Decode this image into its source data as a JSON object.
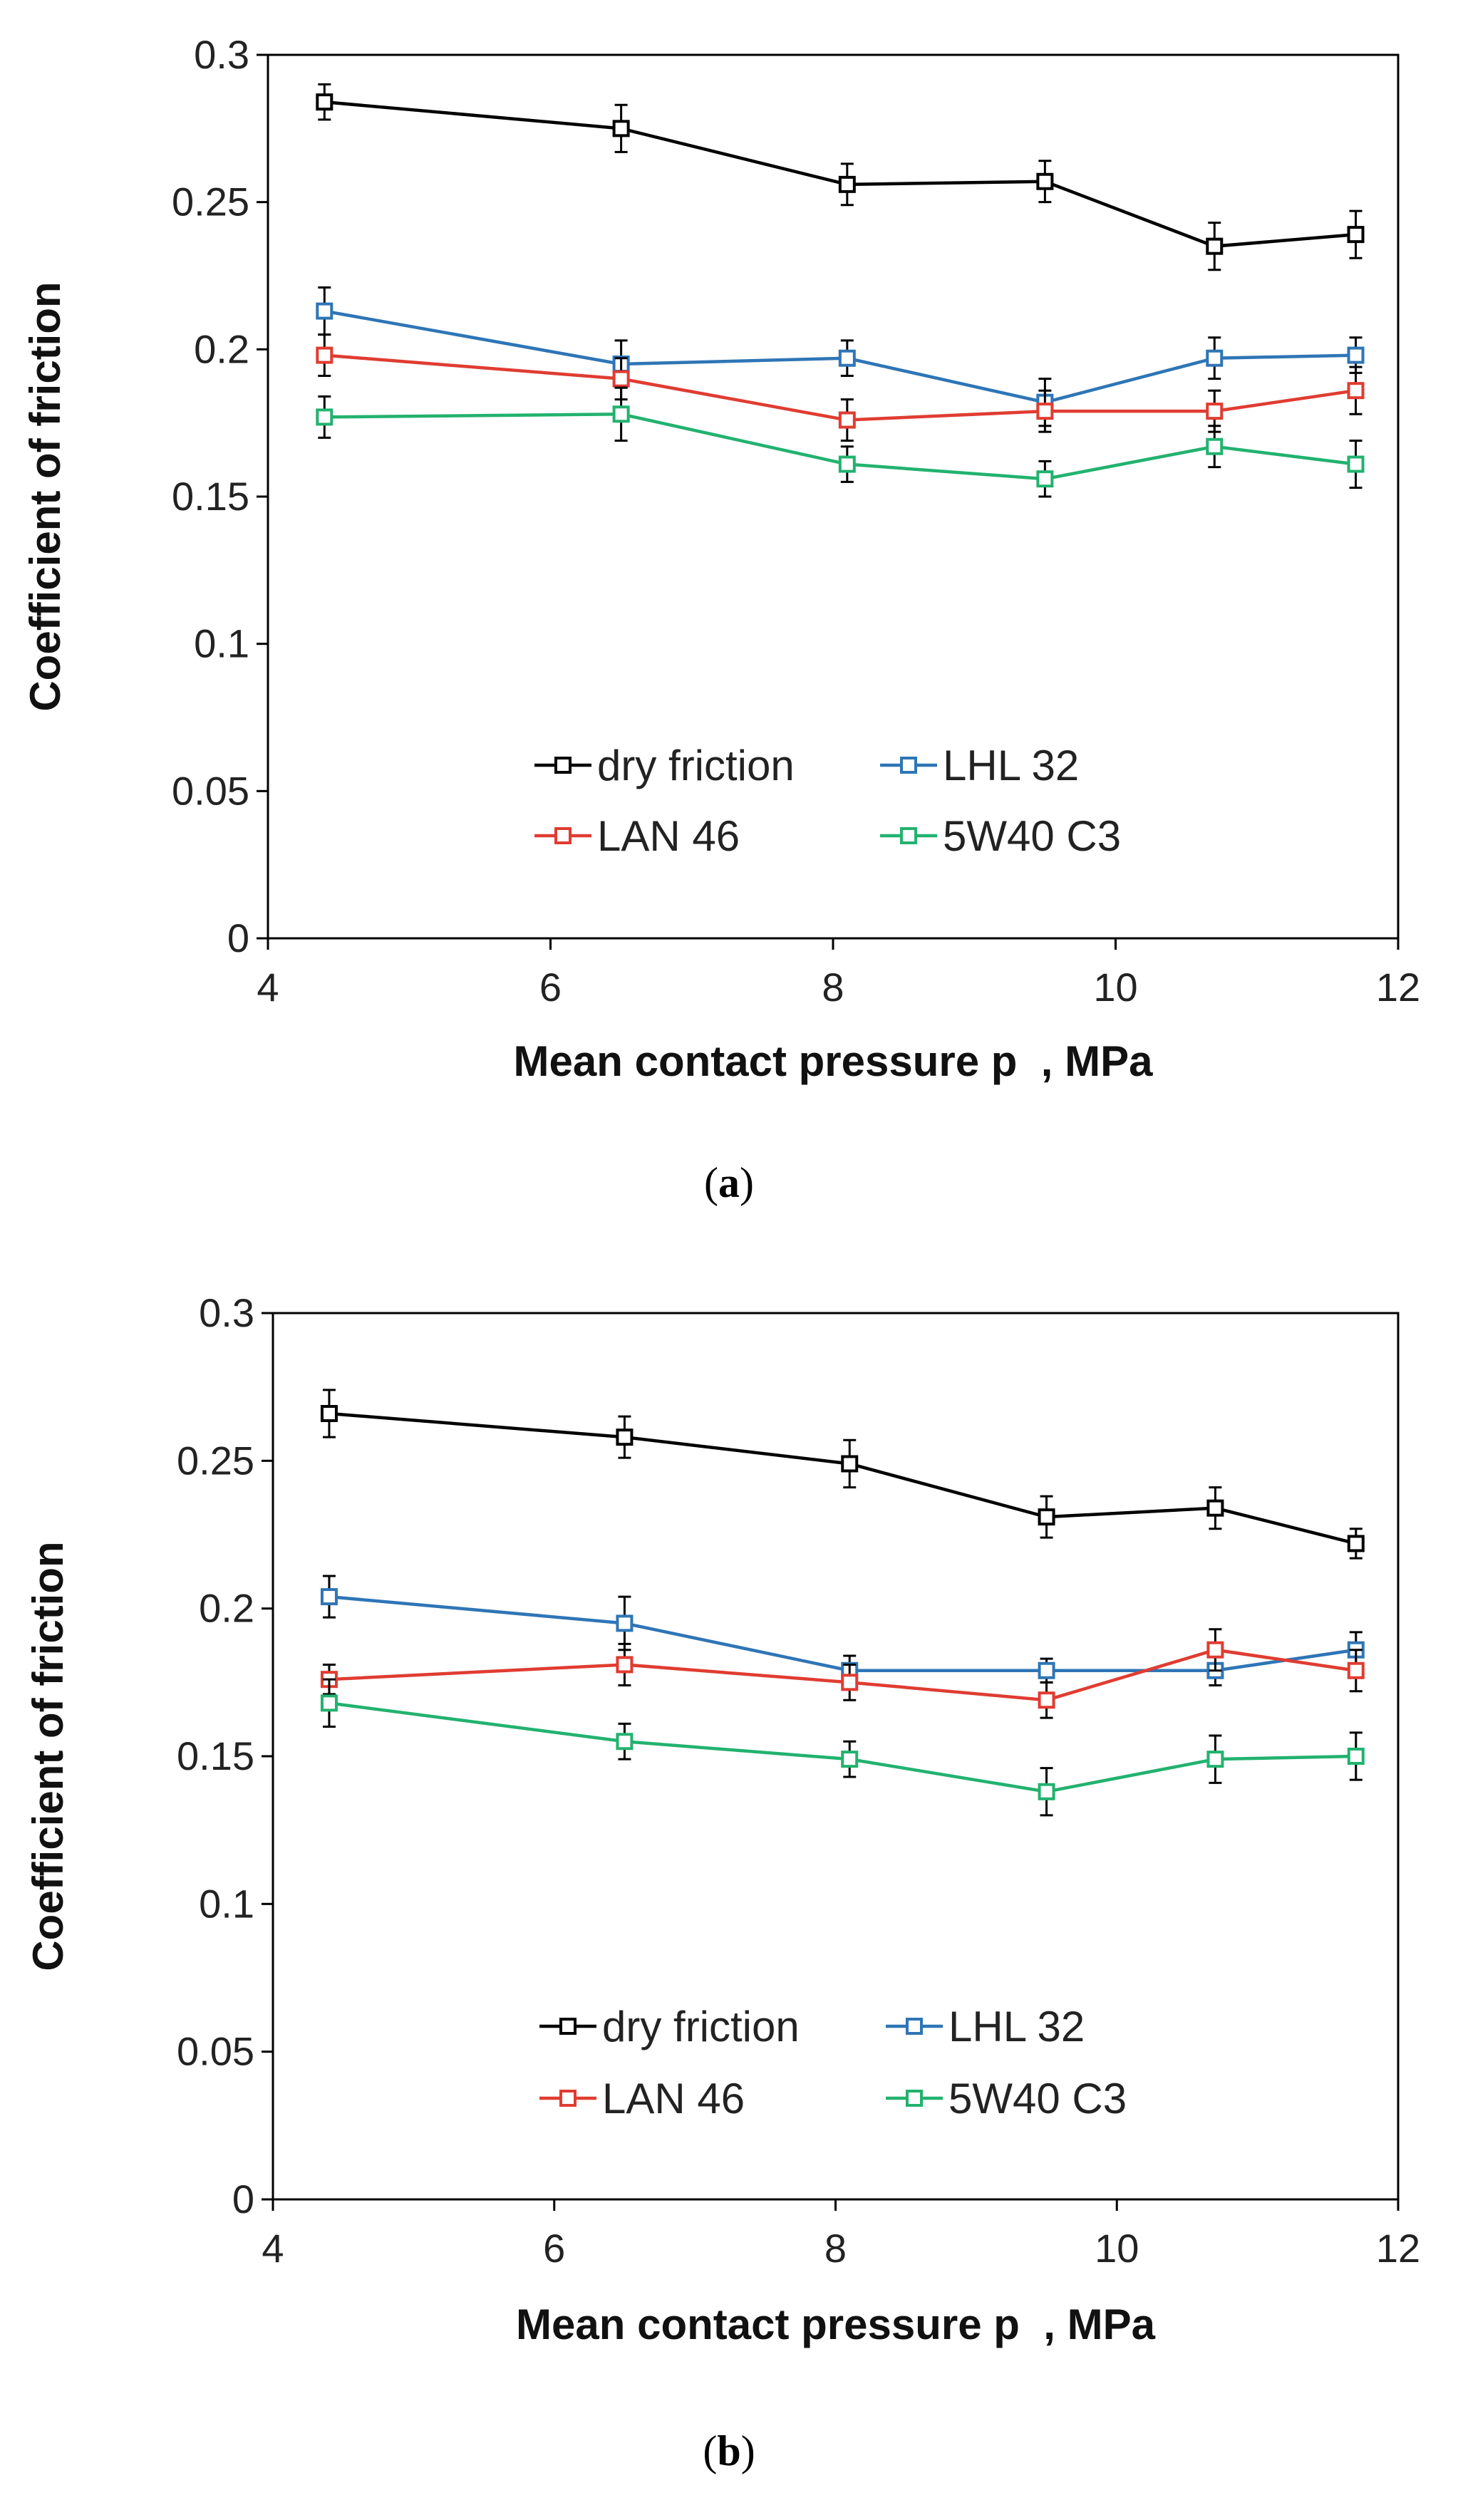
{
  "chart_data": [
    {
      "type": "line",
      "panel_label": {
        "open": "(",
        "letter": "a",
        "close": ")"
      },
      "xlabel": "Mean contact pressure p  , MPa",
      "ylabel": "Coefficient of friction",
      "xlim": [
        4,
        12
      ],
      "ylim": [
        0,
        0.3
      ],
      "xticks": [
        "4",
        "6",
        "8",
        "10",
        "12"
      ],
      "yticks": [
        "0",
        "0.05",
        "0.1",
        "0.15",
        "0.2",
        "0.25",
        "0.3"
      ],
      "x": [
        4.4,
        6.5,
        8.1,
        9.5,
        10.7,
        11.7
      ],
      "legend_position": "lower-center",
      "series": [
        {
          "name": "dry friction",
          "color": "#000000",
          "values": [
            0.284,
            0.275,
            0.256,
            0.257,
            0.235,
            0.239
          ],
          "errors": [
            0.006,
            0.008,
            0.007,
            0.007,
            0.008,
            0.008
          ]
        },
        {
          "name": "LHL 32",
          "color": "#2e75b6",
          "values": [
            0.213,
            0.195,
            0.197,
            0.182,
            0.197,
            0.198
          ],
          "errors": [
            0.008,
            0.008,
            0.006,
            0.008,
            0.007,
            0.006
          ]
        },
        {
          "name": "LAN 46",
          "color": "#e03c31",
          "values": [
            0.198,
            0.19,
            0.176,
            0.179,
            0.179,
            0.186
          ],
          "errors": [
            0.007,
            0.007,
            0.007,
            0.007,
            0.007,
            0.008
          ]
        },
        {
          "name": "5W40 C3",
          "color": "#22b26f",
          "values": [
            0.177,
            0.178,
            0.161,
            0.156,
            0.167,
            0.161
          ],
          "errors": [
            0.007,
            0.009,
            0.006,
            0.006,
            0.007,
            0.008
          ]
        }
      ]
    },
    {
      "type": "line",
      "panel_label": {
        "open": "(",
        "letter": "b",
        "close": ")"
      },
      "xlabel": "Mean contact pressure p  , MPa",
      "ylabel": "Coefficient of friction",
      "xlim": [
        4,
        12
      ],
      "ylim": [
        0,
        0.3
      ],
      "xticks": [
        "4",
        "6",
        "8",
        "10",
        "12"
      ],
      "yticks": [
        "0",
        "0.05",
        "0.1",
        "0.15",
        "0.2",
        "0.25",
        "0.3"
      ],
      "x": [
        4.4,
        6.5,
        8.1,
        9.5,
        10.7,
        11.7
      ],
      "legend_position": "lower-center",
      "series": [
        {
          "name": "dry friction",
          "color": "#000000",
          "values": [
            0.266,
            0.258,
            0.249,
            0.231,
            0.234,
            0.222
          ],
          "errors": [
            0.008,
            0.007,
            0.008,
            0.007,
            0.007,
            0.005
          ]
        },
        {
          "name": "LHL 32",
          "color": "#2e75b6",
          "values": [
            0.204,
            0.195,
            0.179,
            0.179,
            0.179,
            0.186
          ],
          "errors": [
            0.007,
            0.009,
            0.005,
            0.004,
            0.005,
            0.006
          ]
        },
        {
          "name": "LAN 46",
          "color": "#e03c31",
          "values": [
            0.176,
            0.181,
            0.175,
            0.169,
            0.186,
            0.179
          ],
          "errors": [
            0.005,
            0.007,
            0.006,
            0.006,
            0.007,
            0.007
          ]
        },
        {
          "name": "5W40 C3",
          "color": "#22b26f",
          "values": [
            0.168,
            0.155,
            0.149,
            0.138,
            0.149,
            0.15
          ],
          "errors": [
            0.008,
            0.006,
            0.006,
            0.008,
            0.008,
            0.008
          ]
        }
      ]
    }
  ]
}
